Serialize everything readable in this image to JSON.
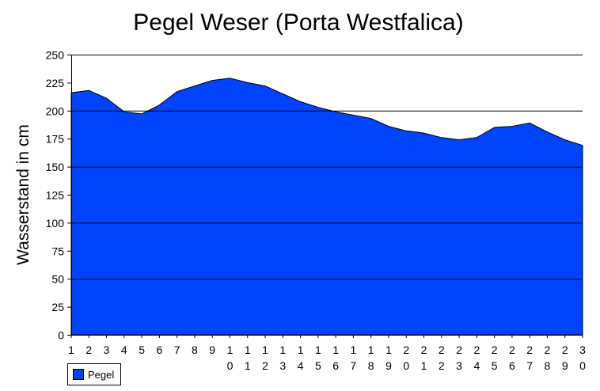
{
  "chart_data": {
    "type": "area",
    "title": "Pegel Weser (Porta Westfalica)",
    "xlabel": "",
    "ylabel": "Wasserstand in cm",
    "x": [
      1,
      2,
      3,
      4,
      5,
      6,
      7,
      8,
      9,
      10,
      11,
      12,
      13,
      14,
      15,
      16,
      17,
      18,
      19,
      20,
      21,
      22,
      23,
      24,
      25,
      26,
      27,
      28,
      29,
      30
    ],
    "series": [
      {
        "name": "Pegel",
        "color": "#0044ff",
        "values": [
          216,
          218,
          211,
          199,
          197,
          205,
          217,
          222,
          227,
          229,
          225,
          222,
          215,
          208,
          203,
          199,
          196,
          193,
          186,
          182,
          180,
          176,
          174,
          176,
          185,
          186,
          189,
          181,
          174,
          169
        ]
      }
    ],
    "ylim": [
      0,
      250
    ],
    "yticks": [
      0,
      25,
      50,
      75,
      100,
      125,
      150,
      175,
      200,
      225,
      250
    ],
    "grid": "horizontal at 50-unit steps",
    "legend": "bottom-left"
  }
}
